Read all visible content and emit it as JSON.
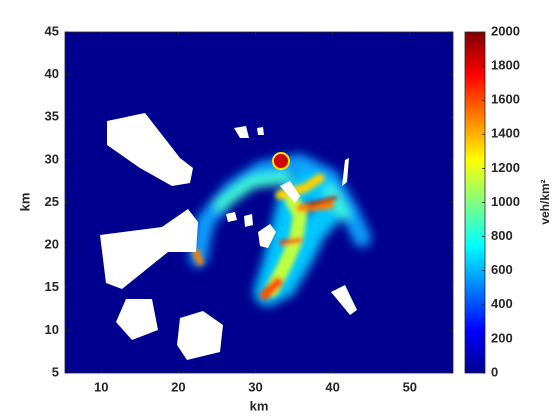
{
  "chart_data": {
    "type": "heatmap",
    "xlabel": "km",
    "ylabel": "km",
    "xlim": [
      5.3,
      55.6
    ],
    "xticks": [
      10,
      20,
      30,
      40,
      50
    ],
    "ylim": [
      5,
      45
    ],
    "yticks": [
      5,
      10,
      15,
      20,
      25,
      30,
      35,
      40,
      45
    ],
    "colorbar_label": "veh/km²",
    "clim": [
      0,
      2000
    ],
    "cticks": [
      0,
      200,
      400,
      600,
      800,
      1000,
      1200,
      1400,
      1600,
      1800,
      2000
    ],
    "colorscale": [
      "#00008f",
      "#0000ff",
      "#0080ff",
      "#00ffff",
      "#80ff80",
      "#ffff00",
      "#ff8000",
      "#ff0000",
      "#800000"
    ]
  }
}
